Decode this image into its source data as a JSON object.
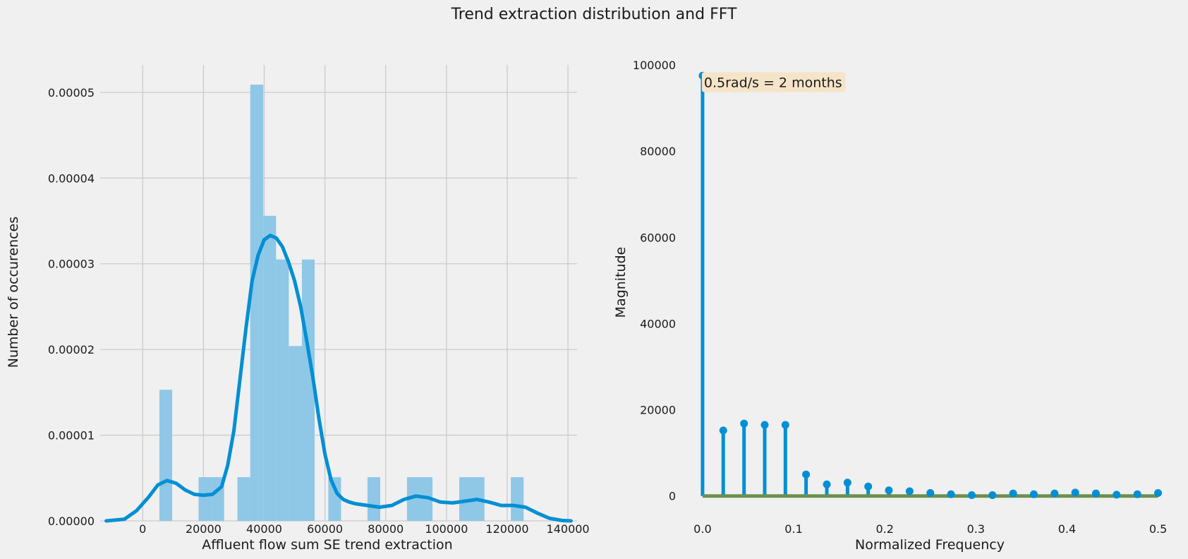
{
  "figure": {
    "title": "Trend extraction distribution and FFT"
  },
  "chart_data": [
    {
      "type": "bar",
      "subtype": "histogram-with-kde",
      "title": "",
      "xlabel": "Affluent flow sum SE trend extraction",
      "ylabel": "Number of occurences",
      "xlim": [
        -14000,
        143000
      ],
      "ylim": [
        0,
        5.32e-05
      ],
      "xticks": [
        0,
        20000,
        40000,
        60000,
        80000,
        100000,
        120000,
        140000
      ],
      "yticks": [
        "0.00000",
        "0.00001",
        "0.00002",
        "0.00003",
        "0.00004",
        "0.00005"
      ],
      "ytick_values": [
        0,
        1e-05,
        2e-05,
        3e-05,
        4e-05,
        5e-05
      ],
      "grid": true,
      "colors": {
        "bars": "#8fc7e6",
        "kde": "#008fd5"
      },
      "bins": [
        {
          "x0": 5500,
          "x1": 9700,
          "value": 1.53e-05
        },
        {
          "x0": 18400,
          "x1": 22600,
          "value": 5.1e-06
        },
        {
          "x0": 22600,
          "x1": 26800,
          "value": 5.1e-06
        },
        {
          "x0": 31200,
          "x1": 35400,
          "value": 5.1e-06
        },
        {
          "x0": 35400,
          "x1": 39700,
          "value": 5.09e-05
        },
        {
          "x0": 39700,
          "x1": 43900,
          "value": 3.56e-05
        },
        {
          "x0": 43900,
          "x1": 48100,
          "value": 3.05e-05
        },
        {
          "x0": 48100,
          "x1": 52400,
          "value": 2.04e-05
        },
        {
          "x0": 52400,
          "x1": 56600,
          "value": 3.05e-05
        },
        {
          "x0": 61100,
          "x1": 65300,
          "value": 5.1e-06
        },
        {
          "x0": 74000,
          "x1": 78200,
          "value": 5.1e-06
        },
        {
          "x0": 87000,
          "x1": 95400,
          "value": 5.1e-06
        },
        {
          "x0": 104200,
          "x1": 112500,
          "value": 5.1e-06
        },
        {
          "x0": 121200,
          "x1": 125400,
          "value": 5.1e-06
        }
      ],
      "kde": {
        "x": [
          -12000,
          -6000,
          -2000,
          2000,
          5000,
          8000,
          11000,
          14000,
          17000,
          20000,
          23000,
          26000,
          28000,
          30000,
          32000,
          34000,
          36000,
          38000,
          40000,
          42000,
          44000,
          46000,
          48000,
          50000,
          52000,
          54000,
          56000,
          58000,
          60000,
          62000,
          64000,
          66000,
          68000,
          70000,
          74000,
          78000,
          82000,
          86000,
          90000,
          94000,
          98000,
          102000,
          106000,
          110000,
          114000,
          118000,
          122000,
          126000,
          130000,
          134000,
          138000,
          141000
        ],
        "y": [
          0,
          2e-07,
          1.2e-06,
          2.8e-06,
          4.2e-06,
          4.7e-06,
          4.4e-06,
          3.6e-06,
          3.1e-06,
          3e-06,
          3.1e-06,
          4e-06,
          6.5e-06,
          1.05e-05,
          1.65e-05,
          2.25e-05,
          2.8e-05,
          3.1e-05,
          3.28e-05,
          3.33e-05,
          3.3e-05,
          3.2e-05,
          3.02e-05,
          2.8e-05,
          2.5e-05,
          2.1e-05,
          1.68e-05,
          1.2e-05,
          7.8e-06,
          4.8e-06,
          3.2e-06,
          2.5e-06,
          2.2e-06,
          2e-06,
          1.8e-06,
          1.6e-06,
          1.8e-06,
          2.5e-06,
          2.9e-06,
          2.7e-06,
          2.2e-06,
          2.1e-06,
          2.3e-06,
          2.5e-06,
          2.2e-06,
          1.8e-06,
          1.8e-06,
          1.6e-06,
          9e-07,
          3e-07,
          5e-08,
          0
        ]
      }
    },
    {
      "type": "stem",
      "title": "",
      "xlabel": "Normalized Frequency",
      "ylabel": "Magnitude",
      "xlim": [
        -0.01,
        0.505
      ],
      "ylim": [
        -2500,
        100000
      ],
      "xticks": [
        "0.0",
        "0.1",
        "0.2",
        "0.3",
        "0.4",
        "0.5"
      ],
      "xtick_values": [
        0,
        0.1,
        0.2,
        0.3,
        0.4,
        0.5
      ],
      "yticks": [
        0,
        20000,
        40000,
        60000,
        80000,
        100000
      ],
      "grid": false,
      "colors": {
        "stems": "#008fd5",
        "baseline": "#6d904f",
        "annotation_box": "#f5e4c8"
      },
      "annotation": {
        "text": "0.5rad/s = 2 months",
        "x": 0.0,
        "y": 96000
      },
      "x": [
        0,
        0.0227,
        0.0455,
        0.0682,
        0.0909,
        0.1136,
        0.1364,
        0.1591,
        0.1818,
        0.2045,
        0.2273,
        0.25,
        0.2727,
        0.2955,
        0.3182,
        0.3409,
        0.3636,
        0.3864,
        0.4091,
        0.4318,
        0.4545,
        0.4773,
        0.5
      ],
      "y": [
        97500,
        15200,
        16800,
        16500,
        16500,
        5000,
        2700,
        3100,
        2200,
        1300,
        1100,
        700,
        400,
        200,
        200,
        600,
        400,
        600,
        800,
        600,
        300,
        400,
        700
      ]
    }
  ]
}
